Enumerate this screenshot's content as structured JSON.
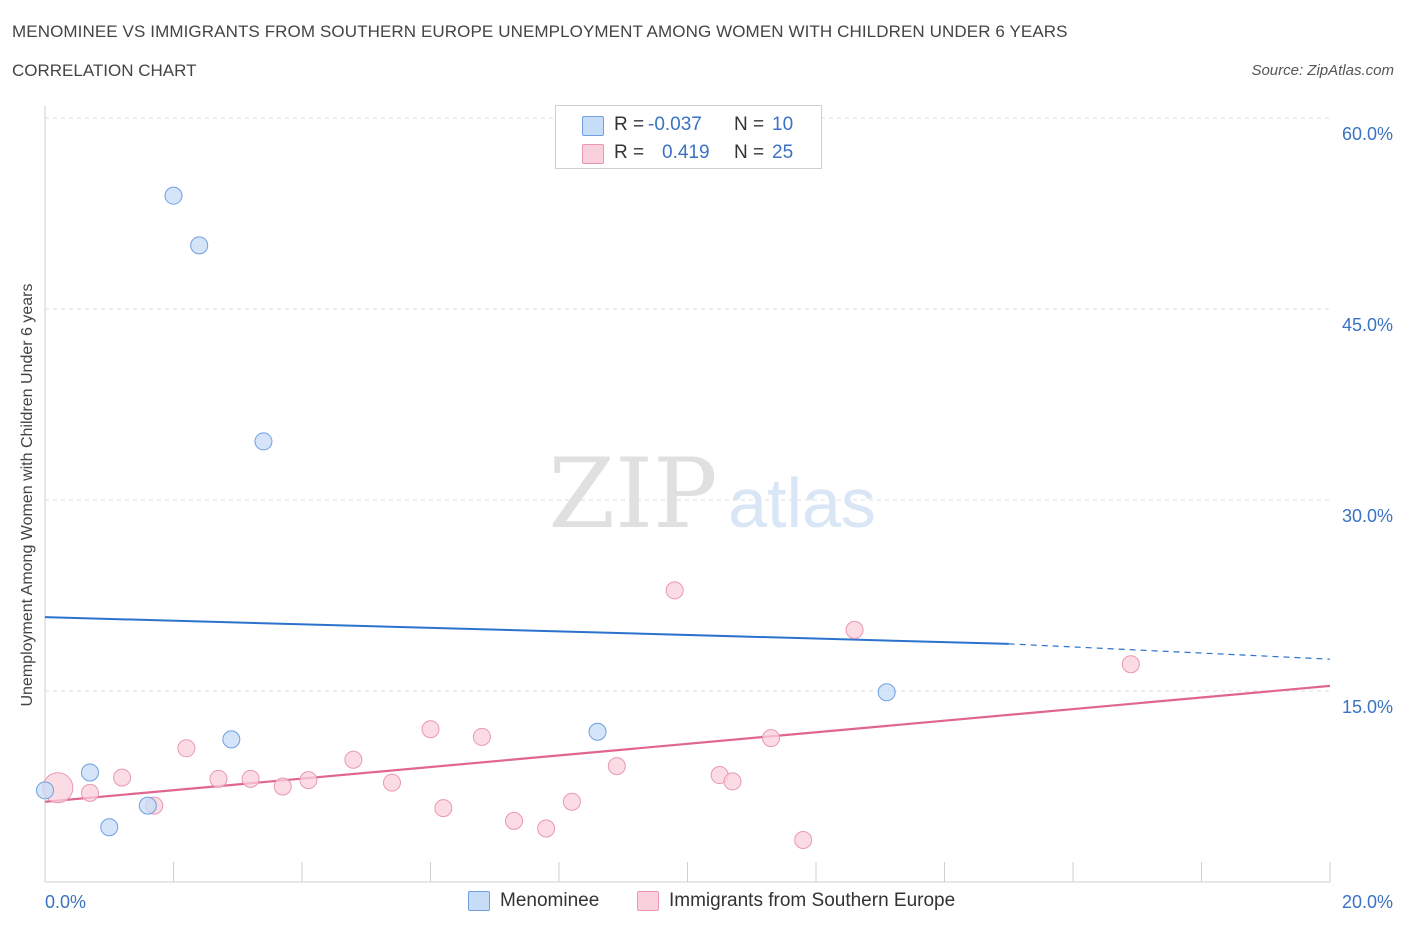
{
  "header": {
    "title": "MENOMINEE VS IMMIGRANTS FROM SOUTHERN EUROPE UNEMPLOYMENT AMONG WOMEN WITH CHILDREN UNDER 6 YEARS",
    "subtitle": "CORRELATION CHART",
    "source": "Source: ZipAtlas.com"
  },
  "watermark": {
    "zip": "ZIP",
    "atlas": "atlas"
  },
  "stats_legend": {
    "rows": [
      {
        "r_label": "R =",
        "r_value": "-0.037",
        "n_label": "N =",
        "n_value": "10",
        "color": "#b8d2f5"
      },
      {
        "r_label": "R =",
        "r_value": "0.419",
        "n_label": "N =",
        "n_value": "25",
        "color": "#f7c6d3"
      }
    ]
  },
  "chart_data": {
    "type": "scatter",
    "ylabel": "Unemployment Among Women with Children Under 6 years",
    "xlim": [
      0,
      20
    ],
    "ylim": [
      0,
      60
    ],
    "x_ticks": [
      {
        "value": 0,
        "label": "0.0%"
      },
      {
        "value": 20,
        "label": "20.0%"
      }
    ],
    "y_ticks": [
      {
        "value": 15,
        "label": "15.0%"
      },
      {
        "value": 30,
        "label": "30.0%"
      },
      {
        "value": 45,
        "label": "45.0%"
      },
      {
        "value": 60,
        "label": "60.0%"
      }
    ],
    "grid": true,
    "legend_position": "bottom",
    "series": [
      {
        "name": "Menominee",
        "color": "#6f9fe0",
        "fill": "#c7dcf7",
        "line_color": "#2b72cc",
        "trend": {
          "x_start": 0,
          "y_start": 20.8,
          "x_solid_end": 15,
          "y_solid_end": 18.7,
          "x_end": 20,
          "y_end": 17.5
        },
        "points": [
          {
            "x": 0.0,
            "y": 7.2
          },
          {
            "x": 0.7,
            "y": 8.6
          },
          {
            "x": 1.0,
            "y": 4.3
          },
          {
            "x": 1.6,
            "y": 6.0
          },
          {
            "x": 2.0,
            "y": 53.9
          },
          {
            "x": 2.4,
            "y": 50.0
          },
          {
            "x": 2.9,
            "y": 11.2
          },
          {
            "x": 3.4,
            "y": 34.6
          },
          {
            "x": 8.6,
            "y": 11.8
          },
          {
            "x": 13.1,
            "y": 14.9
          }
        ]
      },
      {
        "name": "Immigrants from Southern Europe",
        "color": "#ea98b1",
        "fill": "#f9d0dc",
        "line_color": "#e0668f",
        "trend": {
          "x_start": 0,
          "y_start": 6.3,
          "x_end": 20,
          "y_end": 15.4
        },
        "points": [
          {
            "x": 0.2,
            "y": 7.4,
            "big": true
          },
          {
            "x": 0.7,
            "y": 7.0
          },
          {
            "x": 1.2,
            "y": 8.2
          },
          {
            "x": 1.7,
            "y": 6.0
          },
          {
            "x": 2.2,
            "y": 10.5
          },
          {
            "x": 2.7,
            "y": 8.1
          },
          {
            "x": 3.2,
            "y": 8.1
          },
          {
            "x": 3.7,
            "y": 7.5
          },
          {
            "x": 4.1,
            "y": 8.0
          },
          {
            "x": 4.8,
            "y": 9.6
          },
          {
            "x": 5.4,
            "y": 7.8
          },
          {
            "x": 6.0,
            "y": 12.0
          },
          {
            "x": 6.2,
            "y": 5.8
          },
          {
            "x": 6.8,
            "y": 11.4
          },
          {
            "x": 7.3,
            "y": 4.8
          },
          {
            "x": 7.8,
            "y": 4.2
          },
          {
            "x": 8.2,
            "y": 6.3
          },
          {
            "x": 8.9,
            "y": 9.1
          },
          {
            "x": 9.8,
            "y": 22.9
          },
          {
            "x": 10.5,
            "y": 8.4
          },
          {
            "x": 10.7,
            "y": 7.9
          },
          {
            "x": 11.3,
            "y": 11.3
          },
          {
            "x": 11.8,
            "y": 3.3
          },
          {
            "x": 12.6,
            "y": 19.8
          },
          {
            "x": 16.9,
            "y": 17.1
          }
        ]
      }
    ]
  }
}
